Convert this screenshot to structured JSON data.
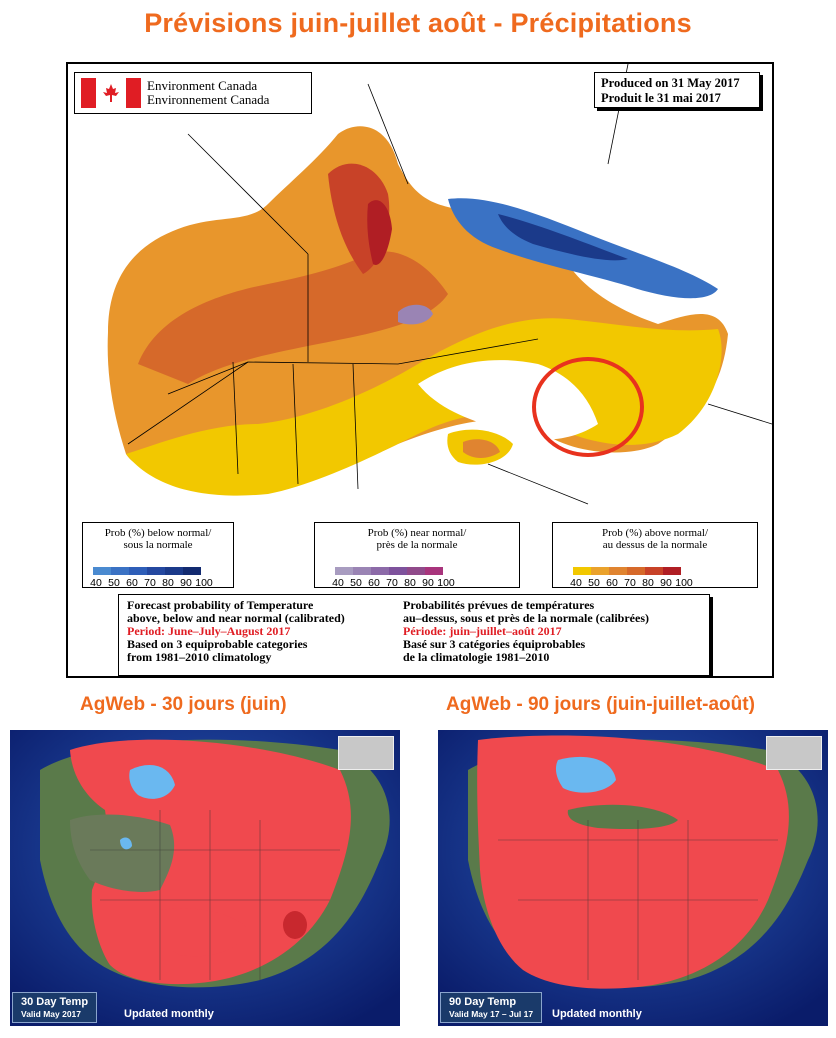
{
  "title": "Prévisions juin-juillet août - Précipitations",
  "ec_map": {
    "agency_en": "Environment Canada",
    "agency_fr": "Environnement Canada",
    "produced_en": "Produced on 31 May 2017",
    "produced_fr": "Produit le 31 mai 2017",
    "legend_below": {
      "title_en": "Prob (%) below normal/",
      "title_fr": "sous la normale",
      "ticks": [
        "40",
        "50",
        "60",
        "70",
        "80",
        "90",
        "100"
      ],
      "colors": [
        "#4a8ad0",
        "#3a72c4",
        "#2e5eb8",
        "#2448a0",
        "#1b3a8a",
        "#122a70"
      ]
    },
    "legend_near": {
      "title_en": "Prob (%) near normal/",
      "title_fr": "près de la normale",
      "ticks": [
        "40",
        "50",
        "60",
        "70",
        "80",
        "90",
        "100"
      ],
      "colors": [
        "#a89cc0",
        "#9a84b4",
        "#8c6aa8",
        "#7e529c",
        "#904a8a",
        "#a8347c"
      ]
    },
    "legend_above": {
      "title_en": "Prob (%) above normal/",
      "title_fr": "au dessus de la normale",
      "ticks": [
        "40",
        "50",
        "60",
        "70",
        "80",
        "90",
        "100"
      ],
      "colors": [
        "#f2c800",
        "#eaa22c",
        "#e08430",
        "#d6692a",
        "#c84228",
        "#b01e24"
      ]
    },
    "forecast_en": {
      "line1": "Forecast probability of Temperature",
      "line2": "above, below and near normal (calibrated)",
      "period": "Period: June–July–August 2017",
      "line4": "Based on 3 equiprobable categories",
      "line5": "from 1981–2010 climatology"
    },
    "forecast_fr": {
      "line1": "Probabilités prévues de températures",
      "line2": "au–dessus, sous et près de la normale (calibrées)",
      "period": "Période: juin–juillet–août 2017",
      "line4": "Basé sur 3 catégories équiprobables",
      "line5": "de la climatologie 1981–2010"
    }
  },
  "agweb_30": {
    "title": "AgWeb - 30 jours (juin)",
    "label": "30 Day Temp",
    "valid": "Valid May 2017",
    "updated": "Updated monthly"
  },
  "agweb_90": {
    "title": "AgWeb - 90 jours (juin-juillet-août)",
    "label": "90 Day Temp",
    "valid": "Valid May 17 – Jul 17",
    "updated": "Updated monthly"
  },
  "colors": {
    "title_orange": "#ef6a1e",
    "forecast_red": "#e01d24",
    "agweb_red": "#f0494e",
    "agweb_blue": "#6ab8f0"
  },
  "icons": [
    "canada-flag-icon",
    "us-map-icon"
  ]
}
